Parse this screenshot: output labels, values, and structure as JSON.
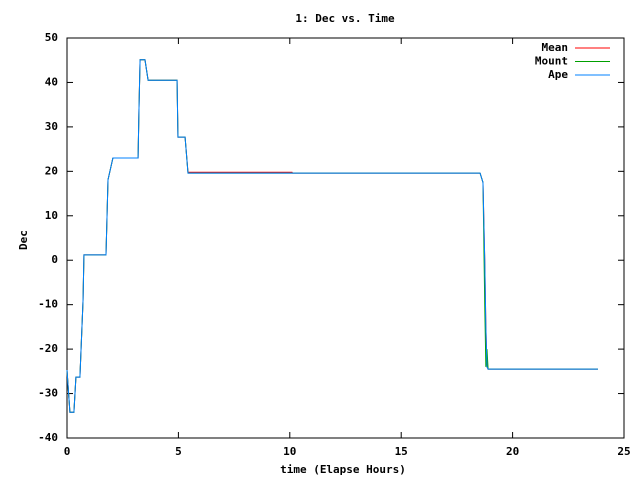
{
  "chart_data": {
    "type": "line",
    "title": "1: Dec vs. Time",
    "x_label": "time (Elapse Hours)",
    "y_label": "Dec",
    "x": [
      0,
      0.13,
      0.31,
      0.4,
      0.58,
      0.72,
      0.76,
      1.75,
      1.84,
      2.06,
      3.19,
      3.23,
      3.28,
      3.5,
      3.64,
      4.94,
      4.98,
      5.3,
      5.43,
      10.1,
      10.12,
      18.54,
      18.67,
      18.75,
      18.8,
      18.85,
      18.9,
      23.83
    ],
    "series": [
      {
        "name": "Mean",
        "color": "#ff0000",
        "values": [
          -24.7,
          -34.2,
          -34.2,
          -26.3,
          -26.3,
          -9,
          1.2,
          1.2,
          18.1,
          23,
          23,
          33.8,
          45.1,
          45.1,
          40.5,
          40.5,
          27.7,
          27.7,
          19.8,
          19.8,
          19.6,
          19.6,
          17.5,
          0,
          -15,
          -24,
          -24.5,
          -24.5
        ]
      },
      {
        "name": "Mount",
        "color": "#00a000",
        "values": [
          -24.7,
          -34.2,
          -34.2,
          -26.3,
          -26.3,
          -9,
          1.2,
          1.2,
          18.1,
          23,
          23,
          33.8,
          45.1,
          45.1,
          40.5,
          40.5,
          27.7,
          27.7,
          19.6,
          19.6,
          19.6,
          19.6,
          17.5,
          -10,
          -24,
          -20,
          -24.5,
          -24.5
        ]
      },
      {
        "name": "Ape",
        "color": "#0080ff",
        "values": [
          -24.7,
          -34.2,
          -34.2,
          -26.3,
          -26.3,
          -9,
          1.2,
          1.2,
          18.1,
          23,
          23,
          33.8,
          45.1,
          45.1,
          40.5,
          40.5,
          27.7,
          27.7,
          19.6,
          19.6,
          19.6,
          19.6,
          17.5,
          0,
          -15,
          -24,
          -24.5,
          -24.5
        ]
      }
    ],
    "xlim": [
      0,
      25
    ],
    "xticks": [
      0,
      5,
      10,
      15,
      20,
      25
    ],
    "ylim": [
      -40,
      50
    ],
    "yticks": [
      -40,
      -30,
      -20,
      -10,
      0,
      10,
      20,
      30,
      40,
      50
    ],
    "legend": "top-right"
  }
}
